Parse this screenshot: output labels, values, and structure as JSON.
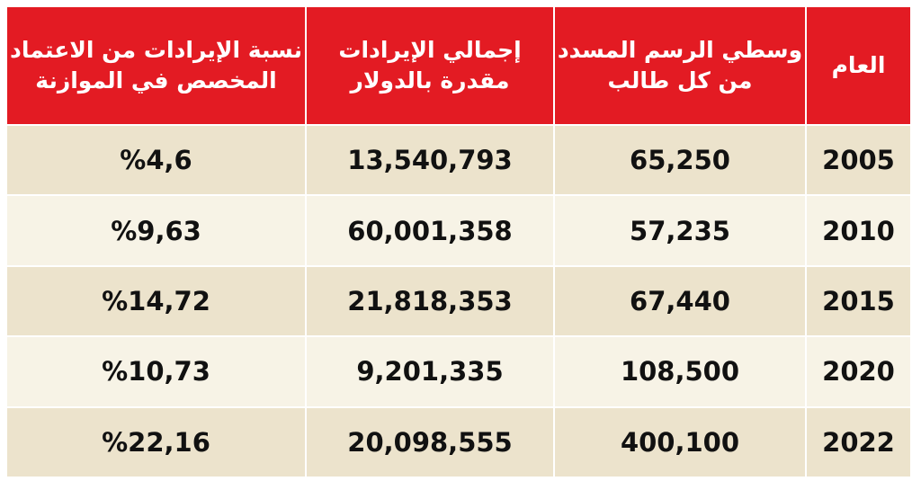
{
  "table": {
    "header": [
      [
        "العام"
      ],
      [
        "وسطي الرسم المسدد",
        "من كل طالب"
      ],
      [
        "إجمالي الإيرادات",
        "مقدرة بالدولار"
      ],
      [
        "نسبة الإيرادات من الاعتماد",
        "المخصص في الموازنة"
      ]
    ],
    "rows": [
      [
        "2005",
        "65,250",
        "13,540,793",
        "%4,6"
      ],
      [
        "2010",
        "57,235",
        "60,001,358",
        "%9,63"
      ],
      [
        "2015",
        "67,440",
        "21,818,353",
        "%14,72"
      ],
      [
        "2020",
        "108,500",
        "9,201,335",
        "%10,73"
      ],
      [
        "2022",
        "400,100",
        "20,098,555",
        "%22,16"
      ]
    ]
  }
}
